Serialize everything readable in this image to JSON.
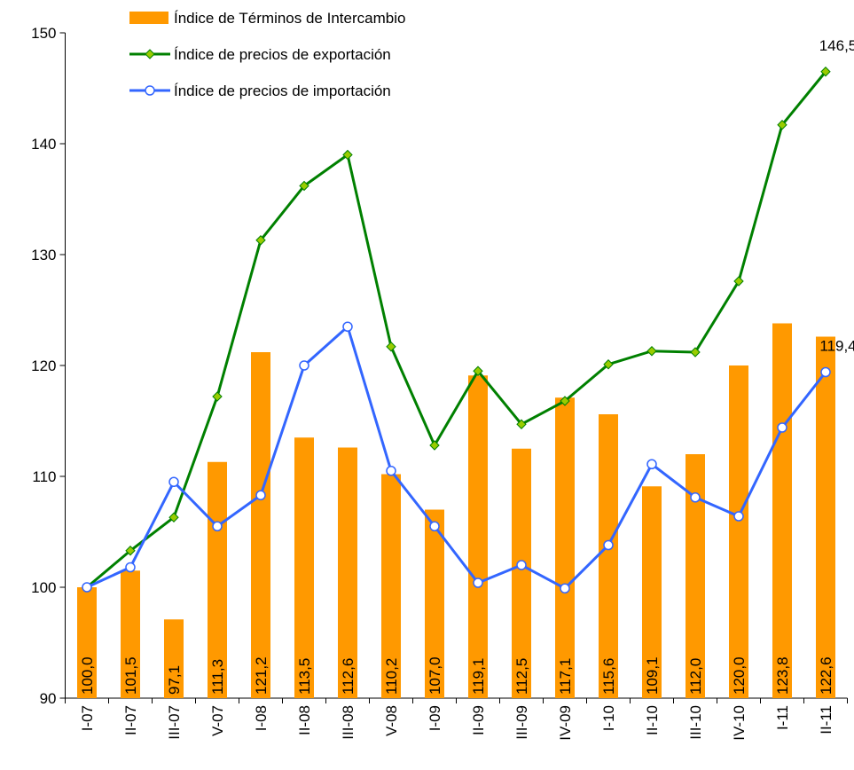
{
  "chart_data": {
    "type": "bar-line",
    "categories": [
      "I-07",
      "II-07",
      "III-07",
      "V-07",
      "I-08",
      "II-08",
      "III-08",
      "V-08",
      "I-09",
      "II-09",
      "III-09",
      "IV-09",
      "I-10",
      "II-10",
      "III-10",
      "IV-10",
      "I-11",
      "II-11"
    ],
    "series": [
      {
        "name": "Índice de Términos de Intercambio",
        "type": "bar",
        "color": "#ff9900",
        "values": [
          100.0,
          101.5,
          97.1,
          111.3,
          121.2,
          113.5,
          112.6,
          110.2,
          107.0,
          119.1,
          112.5,
          117.1,
          115.6,
          109.1,
          112.0,
          120.0,
          123.8,
          122.6
        ],
        "value_labels": [
          "100,0",
          "101,5",
          "97,1",
          "111,3",
          "121,2",
          "113,5",
          "112,6",
          "110,2",
          "107,0",
          "119,1",
          "112,5",
          "117,1",
          "115,6",
          "109,1",
          "112,0",
          "120,0",
          "123,8",
          "122,6"
        ]
      },
      {
        "name": "Índice de precios de exportación",
        "type": "line",
        "color": "#008000",
        "marker_color": "#99cc00",
        "marker": "diamond",
        "values": [
          100,
          103.3,
          106.3,
          117.2,
          131.3,
          136.2,
          139.0,
          121.7,
          112.8,
          119.5,
          114.7,
          116.8,
          120.1,
          121.3,
          121.2,
          127.6,
          141.7,
          146.5
        ],
        "value_labels": [
          null,
          null,
          null,
          null,
          null,
          null,
          null,
          null,
          null,
          null,
          null,
          null,
          null,
          null,
          null,
          null,
          null,
          "146,5"
        ]
      },
      {
        "name": "Índice de precios de importación",
        "type": "line",
        "color": "#3366ff",
        "marker_color": "#ffffff",
        "marker": "circle",
        "values": [
          100,
          101.8,
          109.5,
          105.5,
          108.3,
          120.0,
          123.5,
          110.5,
          105.5,
          100.4,
          102.0,
          99.9,
          103.8,
          111.1,
          108.1,
          106.4,
          114.4,
          119.4
        ],
        "value_labels": [
          null,
          null,
          null,
          null,
          null,
          null,
          null,
          null,
          null,
          null,
          null,
          null,
          null,
          null,
          null,
          null,
          null,
          "119,4"
        ]
      }
    ],
    "ylim": [
      90,
      150
    ],
    "yticks": [
      90,
      100,
      110,
      120,
      130,
      140,
      150
    ]
  }
}
